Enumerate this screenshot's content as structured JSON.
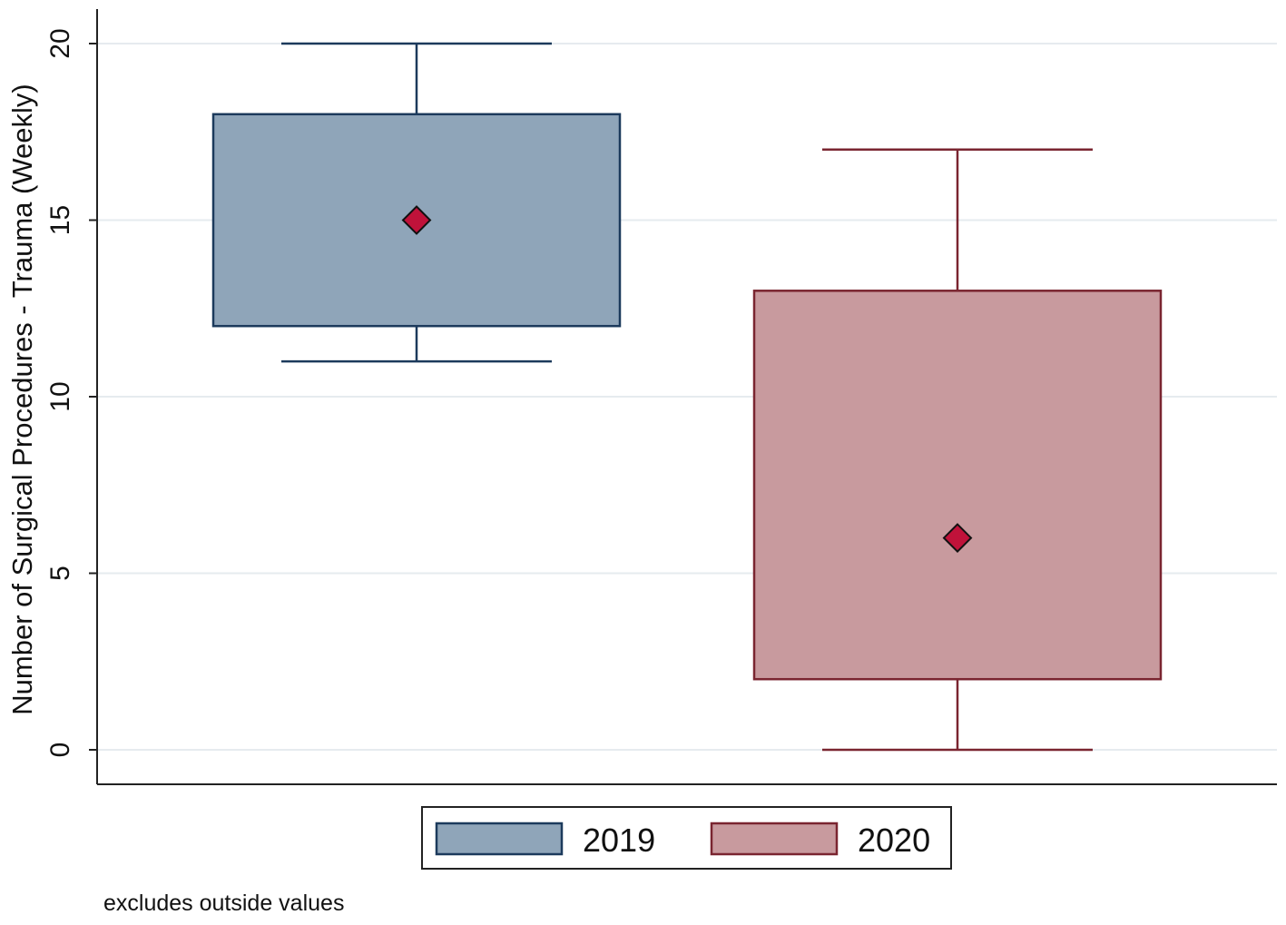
{
  "chart_data": {
    "type": "box",
    "ylabel": "Number of Surgical Procedures - Trauma (Weekly)",
    "ylim": [
      0,
      20
    ],
    "yticks": [
      "0",
      "5",
      "10",
      "15",
      "20"
    ],
    "grid": true,
    "legend_position": "bottom",
    "note": "excludes outside values",
    "series": [
      {
        "name": "2019",
        "whisker_low": 11,
        "q1": 12,
        "q3": 18,
        "whisker_high": 20,
        "marker": 15,
        "fill_color": "#8fa5b9",
        "line_color": "#1c3a5c"
      },
      {
        "name": "2020",
        "whisker_low": 0,
        "q1": 2,
        "q3": 13,
        "whisker_high": 17,
        "marker": 6,
        "fill_color": "#c89a9e",
        "line_color": "#7a2530"
      }
    ],
    "marker_color": "#c0123a"
  }
}
